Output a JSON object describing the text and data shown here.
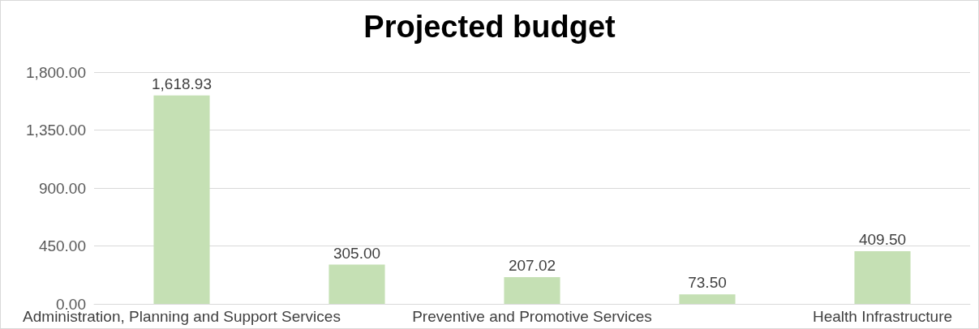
{
  "chart_data": {
    "type": "bar",
    "title": "Projected budget",
    "categories": [
      "Administration, Planning and Support Services",
      null,
      "Preventive and Promotive Services",
      null,
      "Health Infrastructure"
    ],
    "values": [
      1618.93,
      305.0,
      207.02,
      73.5,
      409.5
    ],
    "value_labels": [
      "1,618.93",
      "305.00",
      "207.02",
      "73.50",
      "409.50"
    ],
    "color": "#c5e0b4",
    "ylim": [
      0,
      1800
    ],
    "yticks": [
      {
        "value": 0,
        "label": "0.00"
      },
      {
        "value": 450,
        "label": "450.00"
      },
      {
        "value": 900,
        "label": "900.00"
      },
      {
        "value": 1350,
        "label": "1,350.00"
      },
      {
        "value": 1800,
        "label": "1,800.00"
      }
    ],
    "grid": true
  }
}
